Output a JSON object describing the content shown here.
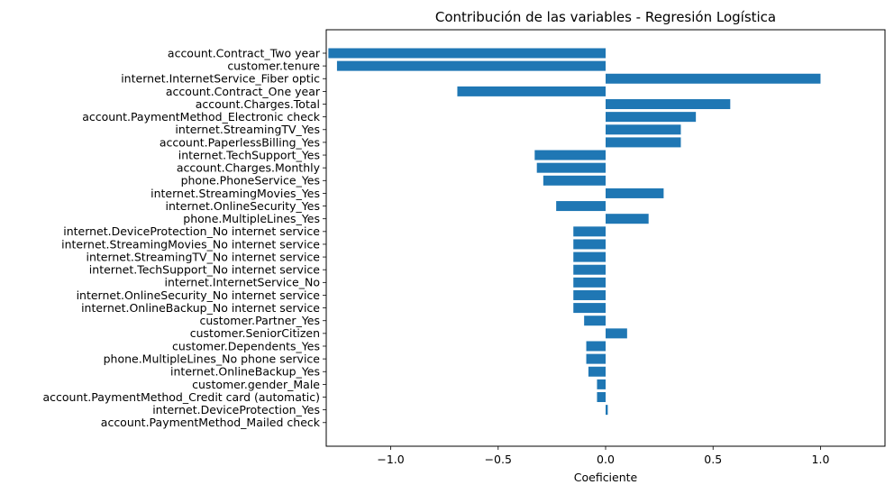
{
  "chart_data": {
    "type": "bar",
    "orientation": "horizontal",
    "title": "Contribución de las variables - Regresión Logística",
    "xlabel": "Coeficiente",
    "ylabel": "",
    "xlim": [
      -1.3,
      1.3
    ],
    "xticks": [
      {
        "value": -1.0,
        "label": "−1.0"
      },
      {
        "value": -0.5,
        "label": "−0.5"
      },
      {
        "value": 0.0,
        "label": "0.0"
      },
      {
        "value": 0.5,
        "label": "0.5"
      },
      {
        "value": 1.0,
        "label": "1.0"
      }
    ],
    "bar_color": "#1f77b4",
    "grid": false,
    "categories": [
      "account.Contract_Two year",
      "customer.tenure",
      "internet.InternetService_Fiber optic",
      "account.Contract_One year",
      "account.Charges.Total",
      "account.PaymentMethod_Electronic check",
      "internet.StreamingTV_Yes",
      "account.PaperlessBilling_Yes",
      "internet.TechSupport_Yes",
      "account.Charges.Monthly",
      "phone.PhoneService_Yes",
      "internet.StreamingMovies_Yes",
      "internet.OnlineSecurity_Yes",
      "phone.MultipleLines_Yes",
      "internet.DeviceProtection_No internet service",
      "internet.StreamingMovies_No internet service",
      "internet.StreamingTV_No internet service",
      "internet.TechSupport_No internet service",
      "internet.InternetService_No",
      "internet.OnlineSecurity_No internet service",
      "internet.OnlineBackup_No internet service",
      "customer.Partner_Yes",
      "customer.SeniorCitizen",
      "customer.Dependents_Yes",
      "phone.MultipleLines_No phone service",
      "internet.OnlineBackup_Yes",
      "customer.gender_Male",
      "account.PaymentMethod_Credit card (automatic)",
      "internet.DeviceProtection_Yes",
      "account.PaymentMethod_Mailed check"
    ],
    "values": [
      -1.29,
      -1.25,
      1.0,
      -0.69,
      0.58,
      0.42,
      0.35,
      0.35,
      -0.33,
      -0.32,
      -0.29,
      0.27,
      -0.23,
      0.2,
      -0.15,
      -0.15,
      -0.15,
      -0.15,
      -0.15,
      -0.15,
      -0.15,
      -0.1,
      0.1,
      -0.09,
      -0.09,
      -0.08,
      -0.04,
      -0.04,
      0.01,
      0.0
    ]
  }
}
